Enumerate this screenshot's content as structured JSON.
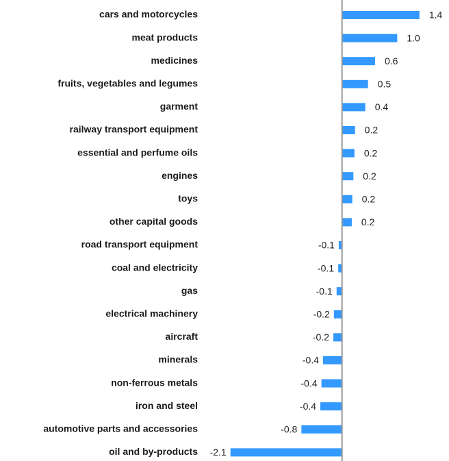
{
  "chart_data": {
    "type": "hbar",
    "categories": [
      "cars and motorcycles",
      "meat products",
      "medicines",
      "fruits, vegetables and legumes",
      "garment",
      "railway transport equipment",
      "essential and perfume oils",
      "engines",
      "toys",
      "other capital goods",
      "road transport equipment",
      "coal and electricity",
      "gas",
      "electrical machinery",
      "aircraft",
      "minerals",
      "non-ferrous metals",
      "iron and steel",
      "automotive parts and accessories",
      "oil and by-products"
    ],
    "values": [
      1.43,
      1.02,
      0.61,
      0.48,
      0.43,
      0.24,
      0.23,
      0.21,
      0.19,
      0.18,
      -0.06,
      -0.07,
      -0.1,
      -0.15,
      -0.16,
      -0.35,
      -0.38,
      -0.4,
      -0.75,
      -2.06
    ],
    "value_labels": [
      "1.4",
      "1.0",
      "0.6",
      "0.5",
      "0.4",
      "0.2",
      "0.2",
      "0.2",
      "0.2",
      "0.2",
      "-0.1",
      "-0.1",
      "-0.1",
      "-0.2",
      "-0.2",
      "-0.4",
      "-0.4",
      "-0.4",
      "-0.8",
      "-2.1"
    ],
    "color": "#3399ff",
    "xlim": [
      -2.6,
      1.9
    ]
  }
}
